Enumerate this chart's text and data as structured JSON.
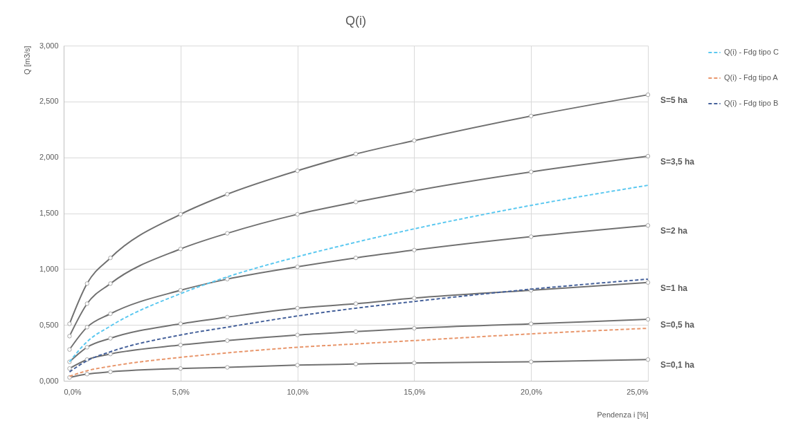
{
  "chart_data": {
    "type": "line",
    "title": "Q(i)",
    "xlabel": "Pendenza i [%]",
    "ylabel": "Q [m3/s]",
    "x": [
      0.25,
      1,
      2,
      5,
      7,
      10,
      12.5,
      15,
      20,
      25
    ],
    "series": [
      {
        "name": "S=5 ha",
        "color": "#707070",
        "marker": "circle",
        "line_style": "solid",
        "values": [
          0.51,
          0.87,
          1.1,
          1.49,
          1.67,
          1.88,
          2.03,
          2.15,
          2.37,
          2.56
        ]
      },
      {
        "name": "S=3,5 ha",
        "color": "#707070",
        "marker": "circle",
        "line_style": "solid",
        "values": [
          0.4,
          0.69,
          0.87,
          1.18,
          1.32,
          1.49,
          1.6,
          1.7,
          1.87,
          2.01
        ]
      },
      {
        "name": "S=2 ha",
        "color": "#707070",
        "marker": "circle",
        "line_style": "solid",
        "values": [
          0.28,
          0.48,
          0.6,
          0.81,
          0.91,
          1.02,
          1.1,
          1.17,
          1.29,
          1.39
        ]
      },
      {
        "name": "S=1 ha",
        "color": "#707070",
        "marker": "circle",
        "line_style": "solid",
        "values": [
          0.17,
          0.3,
          0.38,
          0.51,
          0.57,
          0.65,
          0.69,
          0.74,
          0.81,
          0.88
        ]
      },
      {
        "name": "S=0,5 ha",
        "color": "#707070",
        "marker": "circle",
        "line_style": "solid",
        "values": [
          0.11,
          0.19,
          0.24,
          0.32,
          0.36,
          0.41,
          0.44,
          0.47,
          0.51,
          0.55
        ]
      },
      {
        "name": "S=0,1 ha",
        "color": "#707070",
        "marker": "circle",
        "line_style": "solid",
        "values": [
          0.03,
          0.06,
          0.08,
          0.11,
          0.12,
          0.14,
          0.15,
          0.16,
          0.17,
          0.19
        ]
      },
      {
        "name": "Q(i) - Fdg tipo C",
        "color": "#5bc8f0",
        "marker": "none",
        "line_style": "dashed",
        "values": [
          0.17,
          0.35,
          0.49,
          0.78,
          0.93,
          1.11,
          1.24,
          1.36,
          1.57,
          1.75
        ]
      },
      {
        "name": "Q(i) - Fdg tipo A",
        "color": "#e8956a",
        "marker": "none",
        "line_style": "dashed",
        "values": [
          0.04,
          0.09,
          0.13,
          0.21,
          0.25,
          0.3,
          0.33,
          0.36,
          0.42,
          0.47
        ]
      },
      {
        "name": "Q(i) - Fdg tipo B",
        "color": "#44609a",
        "marker": "none",
        "line_style": "dashed",
        "values": [
          0.08,
          0.18,
          0.26,
          0.41,
          0.48,
          0.58,
          0.65,
          0.71,
          0.82,
          0.91
        ]
      }
    ],
    "xlim": [
      0,
      25
    ],
    "xticks": [
      {
        "value": 0,
        "label": "0,0%"
      },
      {
        "value": 5,
        "label": "5,0%"
      },
      {
        "value": 10,
        "label": "10,0%"
      },
      {
        "value": 15,
        "label": "15,0%"
      },
      {
        "value": 20,
        "label": "20,0%"
      },
      {
        "value": 25,
        "label": "25,0%"
      }
    ],
    "ylim": [
      0,
      3
    ],
    "yticks": [
      {
        "value": 0,
        "label": "0,000"
      },
      {
        "value": 0.5,
        "label": "0,500"
      },
      {
        "value": 1,
        "label": "1,000"
      },
      {
        "value": 1.5,
        "label": "1,500"
      },
      {
        "value": 2,
        "label": "2,000"
      },
      {
        "value": 2.5,
        "label": "2,500"
      },
      {
        "value": 3,
        "label": "3,000"
      }
    ],
    "grid": true,
    "legend": "top right"
  }
}
